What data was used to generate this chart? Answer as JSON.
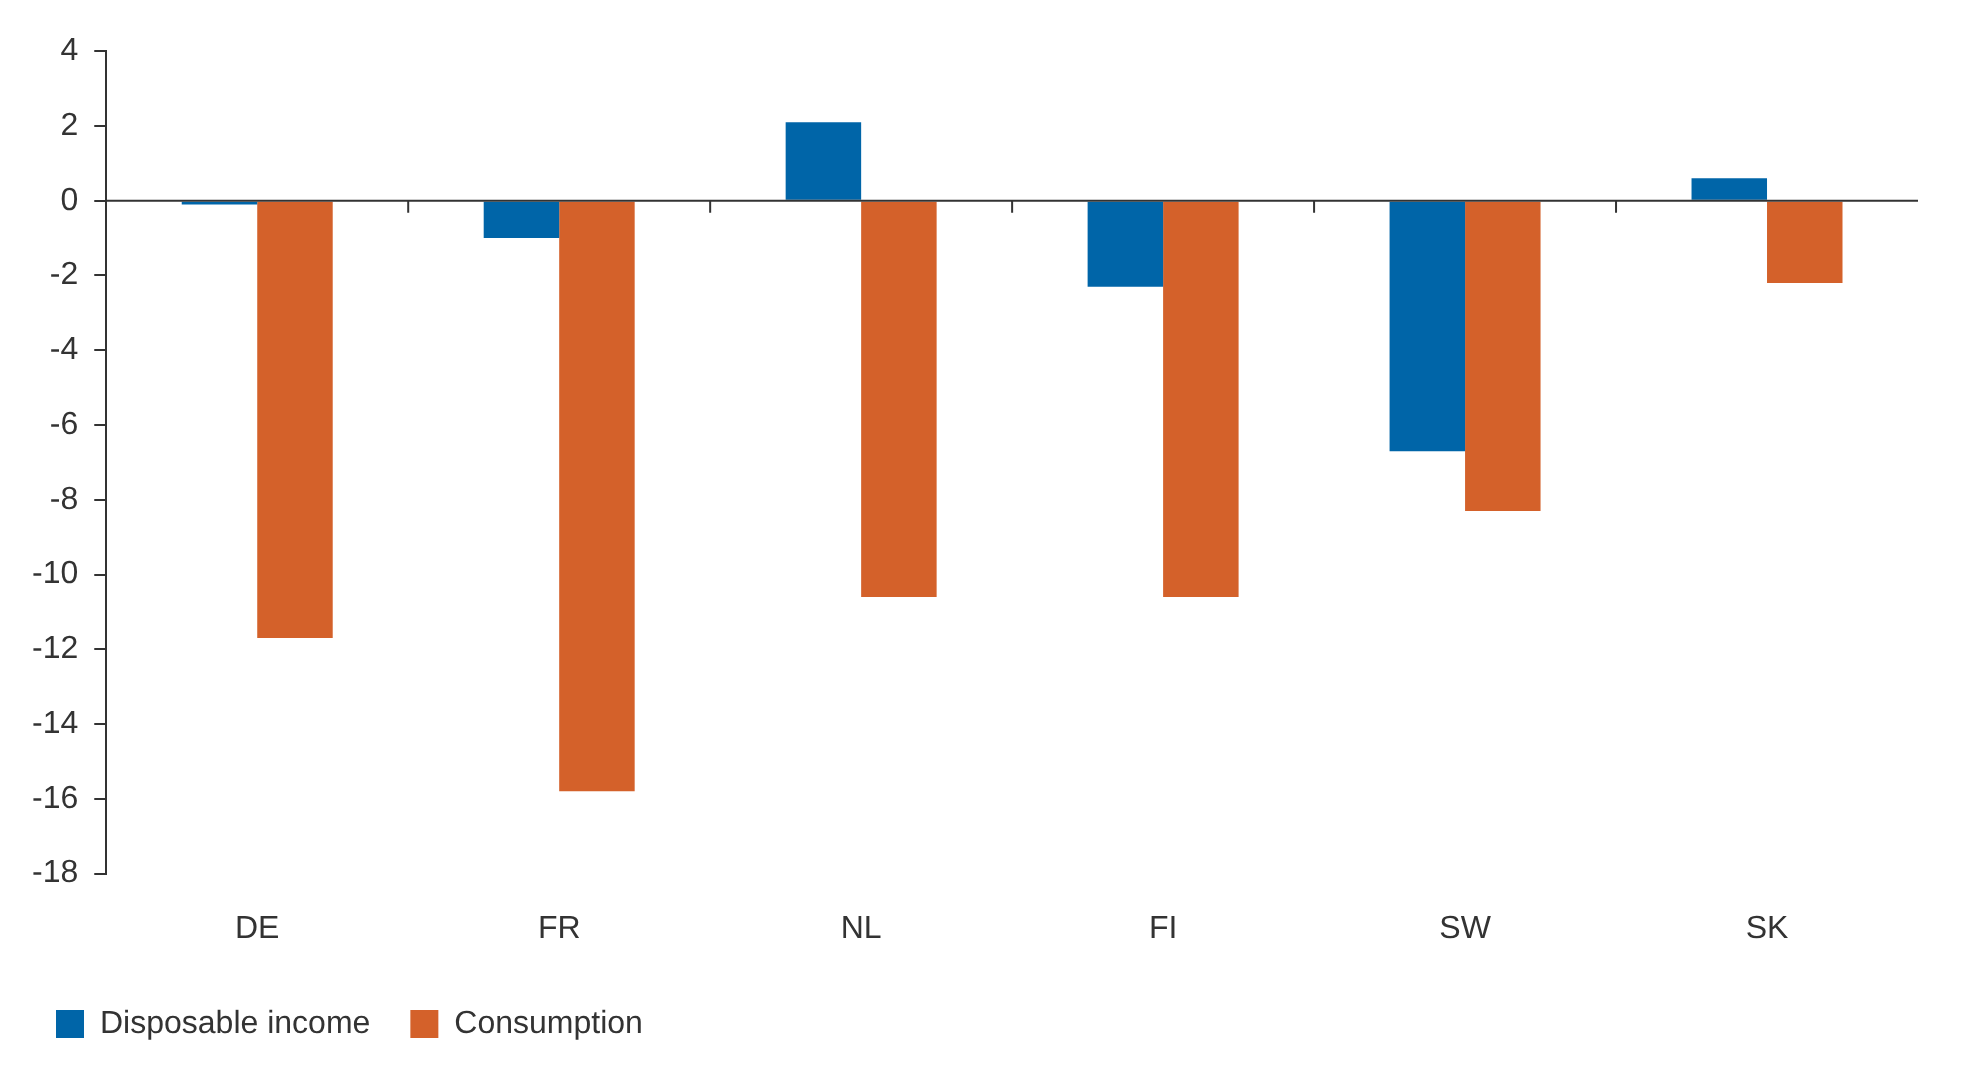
{
  "chart_data": {
    "type": "bar",
    "categories": [
      "DE",
      "FR",
      "NL",
      "FI",
      "SW",
      "SK"
    ],
    "series": [
      {
        "name": "Disposable income",
        "color": "#0065a8",
        "values": [
          -0.1,
          -1.0,
          2.1,
          -2.3,
          -6.7,
          0.6
        ]
      },
      {
        "name": "Consumption",
        "color": "#d4612a",
        "values": [
          -11.7,
          -15.8,
          -10.6,
          -10.6,
          -8.3,
          -2.2
        ]
      }
    ],
    "ylim": [
      -18,
      4
    ],
    "yticks": [
      -18,
      -16,
      -14,
      -12,
      -10,
      -8,
      -6,
      -4,
      -2,
      0,
      2,
      4
    ],
    "legend": "bottom left"
  }
}
